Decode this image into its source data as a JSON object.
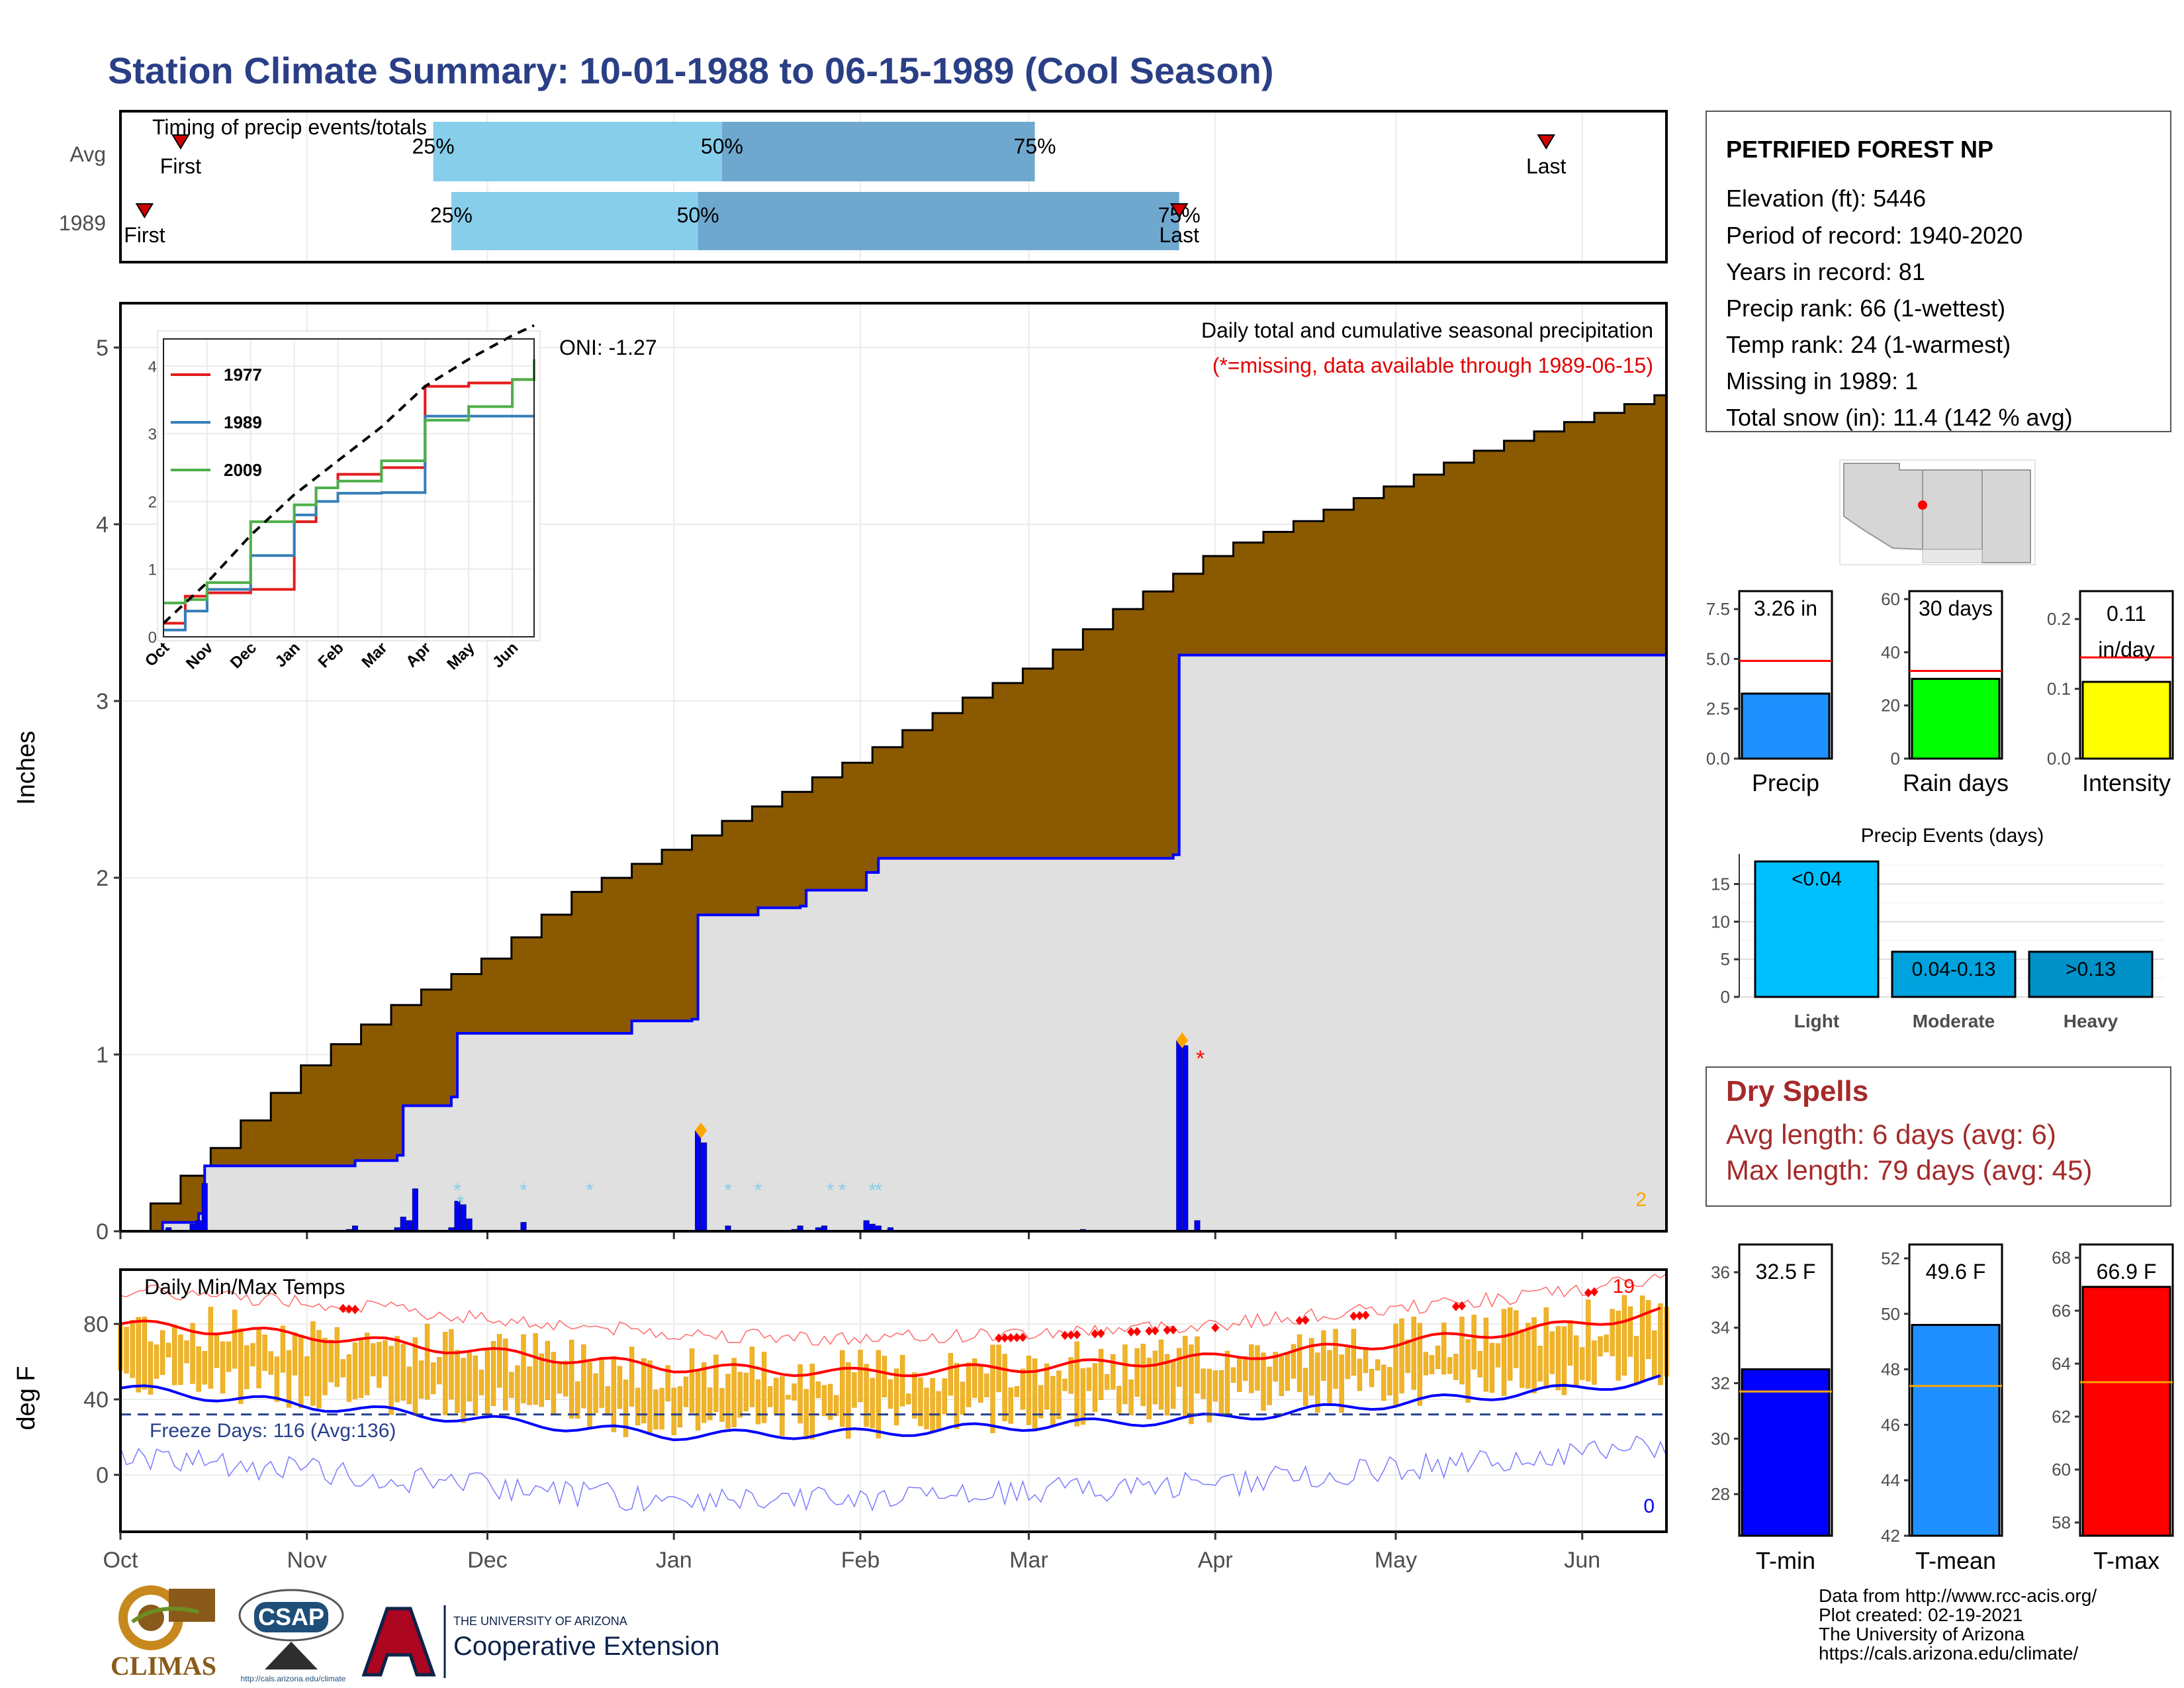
{
  "title": "Station Climate Summary: 10-01-1988 to 06-15-1989 (Cool Season)",
  "timing": {
    "label": "Timing of precip events/totals",
    "rows": [
      {
        "name": "Avg",
        "first": "First",
        "last": "Last",
        "p25": "25%",
        "p50": "50%",
        "p75": "75%",
        "first_date": "1988-10-11",
        "q25": "1988-11-22",
        "q50": "1989-01-09",
        "q75": "1989-03-02",
        "last_date": "1989-05-26"
      },
      {
        "name": "1989",
        "first": "First",
        "last": "Last",
        "p25": "25%",
        "p50": "50%",
        "p75": "75%",
        "first_date": "1988-10-05",
        "q25": "1988-11-25",
        "q50": "1989-01-05",
        "q75": "1989-03-26",
        "last_date": "1989-03-26"
      }
    ]
  },
  "precip_panel": {
    "subtitle": "Daily total and cumulative seasonal precipitation",
    "missing_note": "(*=missing, data available through 1989-06-15)",
    "oni": "ONI: -1.27",
    "ylabel": "Inches",
    "yticks": [
      "0",
      "1",
      "2",
      "3",
      "4",
      "5"
    ],
    "count_label": "2",
    "color_avg": "#8b5a00",
    "color_obs": "#0000ff"
  },
  "inset": {
    "legend": [
      "1977",
      "1989",
      "2009"
    ],
    "colors": [
      "#e41a1c",
      "#377eb8",
      "#4daf4a"
    ],
    "yticks": [
      "0",
      "1",
      "2",
      "3",
      "4"
    ],
    "xticks": [
      "Oct",
      "Nov",
      "Dec",
      "Jan",
      "Feb",
      "Mar",
      "Apr",
      "May",
      "Jun"
    ]
  },
  "temp_panel": {
    "label": "Daily Min/Max Temps",
    "freeze": "Freeze Days: 116 (Avg:136)",
    "ylabel": "deg F",
    "yticks": [
      "0",
      "40",
      "80"
    ],
    "count_top": "19",
    "count_bottom": "0"
  },
  "months": [
    "Oct",
    "Nov",
    "Dec",
    "Jan",
    "Feb",
    "Mar",
    "Apr",
    "May",
    "Jun"
  ],
  "station": {
    "name": "PETRIFIED FOREST NP",
    "lines": [
      "Elevation (ft): 5446",
      "Period of record: 1940-2020",
      "Years in record: 81",
      "Precip rank: 66 (1-wettest)",
      "Temp rank: 24 (1-warmest)",
      "Missing in 1989: 1",
      "Total snow (in): 11.4 (142 % avg)"
    ]
  },
  "mini_bars": [
    {
      "label": "Precip",
      "value_text": "3.26 in",
      "value": 3.26,
      "avg": 4.9,
      "ymax": 8.4,
      "yticks": [
        "0.0",
        "2.5",
        "5.0",
        "7.5"
      ],
      "tickvals": [
        0,
        2.5,
        5,
        7.5
      ],
      "color": "#1e90ff"
    },
    {
      "label": "Rain days",
      "value_text": "30 days",
      "value": 30,
      "avg": 33,
      "ymax": 63,
      "yticks": [
        "0",
        "20",
        "40",
        "60"
      ],
      "tickvals": [
        0,
        20,
        40,
        60
      ],
      "color": "#00ff00"
    },
    {
      "label": "Intensity",
      "value_text": "0.11 in/day",
      "value": 0.11,
      "avg": 0.145,
      "ymax": 0.24,
      "yticks": [
        "0.0",
        "0.1",
        "0.2"
      ],
      "tickvals": [
        0,
        0.1,
        0.2
      ],
      "color": "#ffff00"
    }
  ],
  "events": {
    "title": "Precip Events (days)",
    "categories": [
      "Light",
      "Moderate",
      "Heavy"
    ],
    "labels": [
      "<0.04",
      "0.04-0.13",
      ">0.13"
    ],
    "values": [
      18,
      6,
      6
    ],
    "yticks": [
      "0",
      "5",
      "10",
      "15"
    ],
    "colors": [
      "#00bfff",
      "#00a2dd",
      "#0091c8"
    ]
  },
  "dry_spells": {
    "title": "Dry Spells",
    "avg": "Avg length: 6 days (avg: 6)",
    "max": "Max length: 79 days (avg: 45)"
  },
  "temp_bars": [
    {
      "label": "T-min",
      "value_text": "32.5 F",
      "value": 32.5,
      "avg": 31.7,
      "ymin": 26.5,
      "ymax": 37,
      "yticks": [
        "28",
        "30",
        "32",
        "34",
        "36"
      ],
      "tickvals": [
        28,
        30,
        32,
        34,
        36
      ],
      "color": "#0000ff"
    },
    {
      "label": "T-mean",
      "value_text": "49.6 F",
      "value": 49.6,
      "avg": 47.4,
      "ymin": 42,
      "ymax": 52.5,
      "yticks": [
        "42",
        "44",
        "46",
        "48",
        "50",
        "52"
      ],
      "tickvals": [
        42,
        44,
        46,
        48,
        50,
        52
      ],
      "color": "#1e90ff"
    },
    {
      "label": "T-max",
      "value_text": "66.9 F",
      "value": 66.9,
      "avg": 63.3,
      "ymin": 57.5,
      "ymax": 68.5,
      "yticks": [
        "58",
        "60",
        "62",
        "64",
        "66",
        "68"
      ],
      "tickvals": [
        58,
        60,
        62,
        64,
        66,
        68
      ],
      "color": "#ff0000"
    }
  ],
  "footer": {
    "lines": [
      "Data from http://www.rcc-acis.org/",
      "Plot created: 02-19-2021",
      "The University of Arizona",
      "https://cals.arizona.edu/climate/"
    ],
    "climas": "CLIMAS",
    "csap": "CSAP",
    "csap_url": "http://cals.arizona.edu/climate",
    "ua_small": "THE UNIVERSITY OF ARIZONA",
    "ua_big": "Cooperative Extension"
  },
  "chart_data": [
    {
      "type": "area",
      "title": "Daily total and cumulative seasonal precipitation",
      "ylabel": "Inches",
      "ylim": [
        0,
        5.2
      ],
      "series": [
        {
          "name": "",
          "x": [
            "1988-10-01",
            "1988-10-15",
            "1988-11-01",
            "1988-11-15",
            "1988-12-01",
            "1988-12-15",
            "1989-01-01",
            "1989-01-15",
            "1989-02-01",
            "1989-02-15",
            "1989-03-01",
            "1989-03-15",
            "1989-04-01",
            "1989-04-15",
            "1989-05-01",
            "1989-05-15",
            "1989-06-01",
            "1989-06-15"
          ],
          "values": [
            0,
            0.44,
            0.97,
            1.28,
            1.56,
            1.92,
            2.19,
            2.42,
            2.7,
            2.97,
            3.2,
            3.52,
            3.86,
            4.03,
            4.24,
            4.43,
            4.61,
            4.75
          ]
        },
        {
          "name": "",
          "x": [
            "1988-10-01",
            "1988-10-08",
            "1988-10-14",
            "1988-10-15",
            "1988-11-08",
            "1988-11-09",
            "1988-11-16",
            "1988-11-17",
            "1988-11-25",
            "1988-11-26",
            "1988-12-25",
            "1989-01-04",
            "1989-01-05",
            "1989-01-15",
            "1989-01-22",
            "1989-01-23",
            "1989-02-02",
            "1989-02-04",
            "1989-03-25",
            "1989-03-26",
            "1989-06-15"
          ],
          "values": [
            0,
            0.05,
            0.1,
            0.37,
            0.37,
            0.4,
            0.43,
            0.71,
            0.76,
            1.12,
            1.19,
            1.2,
            1.79,
            1.83,
            1.84,
            1.93,
            2.03,
            2.11,
            2.13,
            3.26,
            3.26
          ]
        }
      ]
    },
    {
      "type": "line",
      "ylim": [
        0,
        4.4
      ],
      "series": [
        {
          "name": "1977",
          "x": [
            0,
            0.5,
            1,
            2,
            3,
            3.5,
            4,
            5,
            6,
            7,
            8,
            8.5
          ],
          "values": [
            0.2,
            0.6,
            0.65,
            0.7,
            1.7,
            2.2,
            2.4,
            2.5,
            3.7,
            3.75,
            3.8,
            3.9
          ]
        },
        {
          "name": "1989",
          "x": [
            0,
            0.5,
            1,
            2,
            3,
            3.5,
            4,
            5,
            6,
            7,
            8,
            8.5
          ],
          "values": [
            0.1,
            0.38,
            0.7,
            1.2,
            1.8,
            2.0,
            2.12,
            2.13,
            3.26,
            3.26,
            3.26,
            3.26
          ]
        },
        {
          "name": "2009",
          "x": [
            0,
            0.5,
            1,
            2,
            3,
            3.5,
            4,
            5,
            6,
            7,
            8,
            8.5
          ],
          "values": [
            0.5,
            0.55,
            0.8,
            1.7,
            1.95,
            2.2,
            2.3,
            2.6,
            3.2,
            3.4,
            3.8,
            4.1
          ]
        },
        {
          "name": "",
          "x": [
            0,
            1,
            2,
            3,
            4,
            5,
            6,
            7,
            8,
            8.5
          ],
          "values": [
            0.2,
            0.8,
            1.5,
            2.1,
            2.6,
            3.1,
            3.7,
            4.1,
            4.45,
            4.6
          ]
        }
      ]
    },
    {
      "type": "line",
      "label": "Daily Min/Max Temps",
      "ylabel": "deg F",
      "ylim": [
        -30,
        105
      ],
      "series": [
        {
          "name": "",
          "x": [
            "1988-10-01",
            "1988-11-01",
            "1988-12-01",
            "1989-01-01",
            "1989-02-01",
            "1989-03-01",
            "1989-04-01",
            "1989-05-01",
            "1989-06-01",
            "1989-06-15"
          ],
          "values": [
            80,
            74,
            65,
            57,
            54,
            57,
            62,
            70,
            80,
            87
          ]
        },
        {
          "name": "",
          "x": [
            "1988-10-01",
            "1988-11-01",
            "1988-12-01",
            "1989-01-01",
            "1989-02-01",
            "1989-03-01",
            "1989-04-01",
            "1989-05-01",
            "1989-06-01",
            "1989-06-15"
          ],
          "values": [
            46,
            37,
            29,
            21,
            22,
            26,
            30,
            38,
            46,
            51
          ]
        }
      ],
      "freeze_threshold": 32
    }
  ]
}
